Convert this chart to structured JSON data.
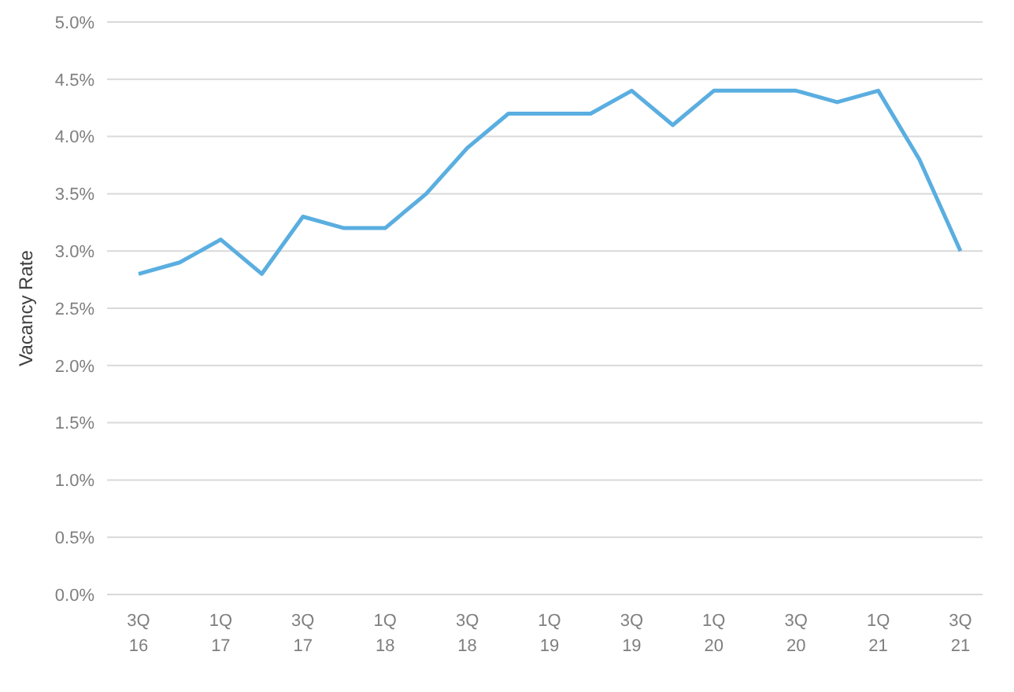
{
  "chart_data": {
    "type": "line",
    "ylabel": "Vacancy Rate",
    "categories": [
      "3Q\n16",
      null,
      "1Q\n17",
      null,
      "3Q\n17",
      null,
      "1Q\n18",
      null,
      "3Q\n18",
      null,
      "1Q\n19",
      null,
      "3Q\n19",
      null,
      "1Q\n20",
      null,
      "3Q\n20",
      null,
      "1Q\n21",
      null,
      "3Q\n21"
    ],
    "series": [
      {
        "color": "#5aaee0",
        "values": [
          2.8,
          2.9,
          3.1,
          2.8,
          3.3,
          3.2,
          3.2,
          3.5,
          3.9,
          4.2,
          4.2,
          4.2,
          4.4,
          4.1,
          4.4,
          4.4,
          4.4,
          4.3,
          4.4,
          3.8,
          3.0
        ]
      }
    ],
    "ylim": [
      0,
      5
    ],
    "yticks": [
      {
        "value": 0,
        "label": "0.0%"
      },
      {
        "value": 0.5,
        "label": "0.5%"
      },
      {
        "value": 1,
        "label": "1.0%"
      },
      {
        "value": 1.5,
        "label": "1.5%"
      },
      {
        "value": 2,
        "label": "2.0%"
      },
      {
        "value": 2.5,
        "label": "2.5%"
      },
      {
        "value": 3,
        "label": "3.0%"
      },
      {
        "value": 3.5,
        "label": "3.5%"
      },
      {
        "value": 4,
        "label": "4.0%"
      },
      {
        "value": 4.5,
        "label": "4.5%"
      },
      {
        "value": 5,
        "label": "5.0%"
      }
    ],
    "grid": "y",
    "legend": false,
    "marker": "none",
    "line_style": "solid"
  }
}
